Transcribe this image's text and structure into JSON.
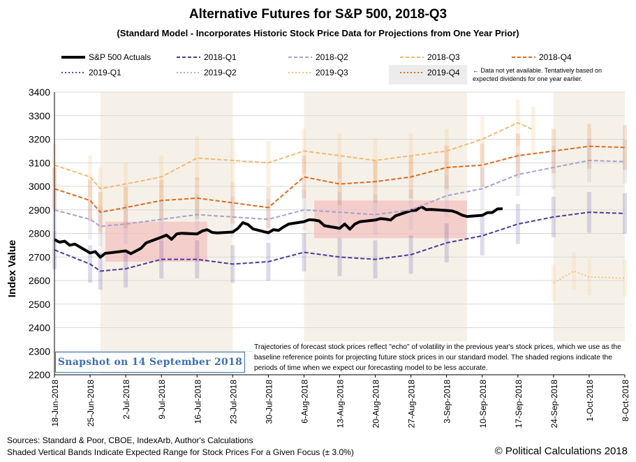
{
  "chart": {
    "title": "Alternative Futures for S&P 500, 2018-Q3",
    "subtitle": "(Standard Model - Incorporates Historic Stock Price Data for Projections from One Year Prior)",
    "ylabel": "Index Value",
    "snapshot": "Snapshot on 14 September 2018",
    "note": "Trajectories of forecast stock prices reflect \"echo\" of volatility in  the previous year's stock prices, which we use as the baseline reference points for projecting future stock prices in our standard model.   The shaded regions indicate the periods of time when we expect our forecasting model to be less accurate.",
    "legend_note": "← Data not yet available. Tentatively based on expected dividends for one year earlier.",
    "sources": "Sources: Standard & Poor, CBOE, IndexArb, Author's Calculations",
    "bands_note": "Shaded Vertical Bands Indicate Expected Range for Stock Prices For a Given Focus (± 3.0%)",
    "copyright": "© Political Calculations 2018"
  },
  "legend": [
    {
      "label": "S&P 500 Actuals",
      "color": "#000000",
      "style": "solid-thick"
    },
    {
      "label": "2018-Q1",
      "color": "#4b3a9e",
      "style": "dash"
    },
    {
      "label": "2018-Q2",
      "color": "#a8a2cc",
      "style": "dash"
    },
    {
      "label": "2018-Q3",
      "color": "#f6b870",
      "style": "dash"
    },
    {
      "label": "2018-Q4",
      "color": "#e0691c",
      "style": "dash"
    },
    {
      "label": "2019-Q1",
      "color": "#5a4aa8",
      "style": "dot"
    },
    {
      "label": "2019-Q2",
      "color": "#b5b0d6",
      "style": "dot"
    },
    {
      "label": "2019-Q3",
      "color": "#f6c27c",
      "style": "dot"
    },
    {
      "label": "2019-Q4",
      "color": "#e0691c",
      "style": "dot"
    }
  ],
  "chart_data": {
    "type": "line",
    "title": "Alternative Futures for S&P 500, 2018-Q3",
    "ylabel": "Index Value",
    "ylim": [
      2200,
      3400
    ],
    "yticks": [
      2200,
      2300,
      2400,
      2500,
      2600,
      2700,
      2800,
      2900,
      3000,
      3100,
      3200,
      3300,
      3400
    ],
    "xlim": [
      "2018-06-18",
      "2018-10-08"
    ],
    "xticks": [
      "18-Jun-2018",
      "25-Jun-2018",
      "2-Jul-2018",
      "9-Jul-2018",
      "16-Jul-2018",
      "23-Jul-2018",
      "30-Jul-2018",
      "6-Aug-2018",
      "13-Aug-2018",
      "20-Aug-2018",
      "27-Aug-2018",
      "3-Sep-2018",
      "10-Sep-2018",
      "17-Sep-2018",
      "24-Sep-2018",
      "1-Oct-2018",
      "8-Oct-2018"
    ],
    "grid": true,
    "legend_position": "top",
    "shaded_vertical_regions": [
      [
        "2018-06-27",
        "2018-07-23"
      ],
      [
        "2018-08-06",
        "2018-09-07"
      ],
      [
        "2018-09-24",
        "2018-10-08"
      ]
    ],
    "highlight_regions": [
      {
        "x": [
          "2018-06-28",
          "2018-07-18"
        ],
        "y": [
          2680,
          2850
        ],
        "color": "#f3b8b8"
      },
      {
        "x": [
          "2018-08-08",
          "2018-09-07"
        ],
        "y": [
          2780,
          2940
        ],
        "color": "#f3b8b8"
      }
    ],
    "series": [
      {
        "name": "S&P 500 Actuals",
        "color": "#000000",
        "x": [
          "2018-06-18",
          "2018-06-19",
          "2018-06-20",
          "2018-06-21",
          "2018-06-22",
          "2018-06-25",
          "2018-06-26",
          "2018-06-27",
          "2018-06-28",
          "2018-06-29",
          "2018-07-02",
          "2018-07-03",
          "2018-07-05",
          "2018-07-06",
          "2018-07-09",
          "2018-07-10",
          "2018-07-11",
          "2018-07-12",
          "2018-07-13",
          "2018-07-16",
          "2018-07-17",
          "2018-07-18",
          "2018-07-19",
          "2018-07-20",
          "2018-07-23",
          "2018-07-24",
          "2018-07-25",
          "2018-07-26",
          "2018-07-27",
          "2018-07-30",
          "2018-07-31",
          "2018-08-01",
          "2018-08-02",
          "2018-08-03",
          "2018-08-06",
          "2018-08-07",
          "2018-08-08",
          "2018-08-09",
          "2018-08-10",
          "2018-08-13",
          "2018-08-14",
          "2018-08-15",
          "2018-08-16",
          "2018-08-17",
          "2018-08-20",
          "2018-08-21",
          "2018-08-22",
          "2018-08-23",
          "2018-08-24",
          "2018-08-27",
          "2018-08-28",
          "2018-08-29",
          "2018-08-30",
          "2018-08-31",
          "2018-09-04",
          "2018-09-05",
          "2018-09-06",
          "2018-09-07",
          "2018-09-10",
          "2018-09-11",
          "2018-09-12",
          "2018-09-13",
          "2018-09-14"
        ],
        "values": [
          2774,
          2763,
          2767,
          2750,
          2755,
          2717,
          2723,
          2699,
          2716,
          2718,
          2726,
          2714,
          2737,
          2760,
          2784,
          2793,
          2775,
          2798,
          2801,
          2798,
          2810,
          2816,
          2804,
          2802,
          2806,
          2821,
          2846,
          2838,
          2819,
          2803,
          2816,
          2813,
          2828,
          2840,
          2850,
          2858,
          2857,
          2853,
          2833,
          2822,
          2840,
          2818,
          2840,
          2850,
          2857,
          2863,
          2861,
          2857,
          2875,
          2897,
          2898,
          2914,
          2901,
          2902,
          2896,
          2889,
          2878,
          2872,
          2877,
          2888,
          2889,
          2904,
          2905
        ]
      },
      {
        "name": "2018-Q1",
        "color": "#4b3a9e",
        "x": [
          "2018-06-18",
          "2018-06-25",
          "2018-06-27",
          "2018-07-02",
          "2018-07-09",
          "2018-07-16",
          "2018-07-23",
          "2018-07-30",
          "2018-08-06",
          "2018-08-13",
          "2018-08-20",
          "2018-08-27",
          "2018-09-03",
          "2018-09-10",
          "2018-09-17",
          "2018-09-24",
          "2018-10-01",
          "2018-10-08"
        ],
        "values": [
          2730,
          2670,
          2640,
          2650,
          2690,
          2690,
          2670,
          2680,
          2720,
          2700,
          2690,
          2710,
          2760,
          2790,
          2840,
          2870,
          2890,
          2885
        ]
      },
      {
        "name": "2018-Q2",
        "color": "#a8a2cc",
        "x": [
          "2018-06-18",
          "2018-06-25",
          "2018-06-27",
          "2018-07-02",
          "2018-07-09",
          "2018-07-16",
          "2018-07-23",
          "2018-07-30",
          "2018-08-06",
          "2018-08-13",
          "2018-08-20",
          "2018-08-27",
          "2018-09-03",
          "2018-09-10",
          "2018-09-17",
          "2018-09-24",
          "2018-10-01",
          "2018-10-08"
        ],
        "values": [
          2900,
          2860,
          2830,
          2840,
          2860,
          2880,
          2870,
          2860,
          2900,
          2890,
          2880,
          2900,
          2960,
          2990,
          3050,
          3080,
          3110,
          3105
        ]
      },
      {
        "name": "2018-Q3",
        "color": "#f6b870",
        "x": [
          "2018-06-18",
          "2018-06-25",
          "2018-06-27",
          "2018-07-02",
          "2018-07-09",
          "2018-07-16",
          "2018-07-23",
          "2018-07-30",
          "2018-08-06",
          "2018-08-13",
          "2018-08-20",
          "2018-08-27",
          "2018-09-03",
          "2018-09-10",
          "2018-09-17",
          "2018-09-20"
        ],
        "values": [
          3090,
          3040,
          2990,
          3010,
          3040,
          3120,
          3110,
          3100,
          3150,
          3130,
          3110,
          3130,
          3150,
          3200,
          3270,
          3240
        ]
      },
      {
        "name": "2018-Q4",
        "color": "#e0691c",
        "x": [
          "2018-06-18",
          "2018-06-25",
          "2018-06-27",
          "2018-07-02",
          "2018-07-09",
          "2018-07-16",
          "2018-07-23",
          "2018-07-30",
          "2018-08-06",
          "2018-08-13",
          "2018-08-20",
          "2018-08-27",
          "2018-09-03",
          "2018-09-10",
          "2018-09-17",
          "2018-09-24",
          "2018-10-01",
          "2018-10-08"
        ],
        "values": [
          2990,
          2940,
          2890,
          2910,
          2940,
          2950,
          2930,
          2910,
          3040,
          3010,
          3020,
          3040,
          3080,
          3090,
          3130,
          3150,
          3170,
          3165
        ]
      },
      {
        "name": "2019-Q3",
        "color": "#f6c27c",
        "x": [
          "2018-09-24",
          "2018-09-28",
          "2018-10-01",
          "2018-10-08"
        ],
        "values": [
          2590,
          2640,
          2615,
          2610
        ]
      }
    ]
  }
}
